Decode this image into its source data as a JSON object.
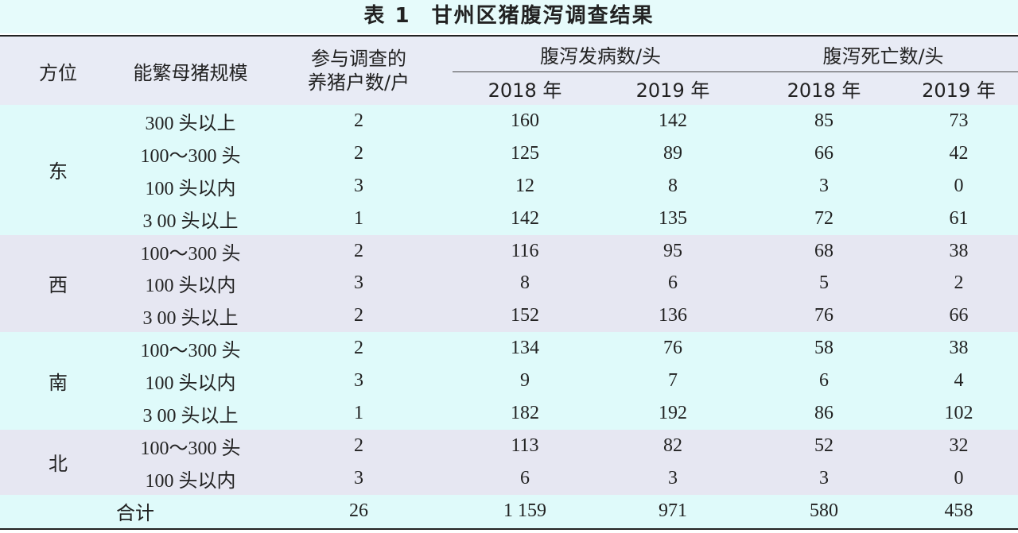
{
  "title": {
    "label": "表 1",
    "text": "甘州区猪腹泻调查结果"
  },
  "header": {
    "region": "方位",
    "scale": "能繁母猪规模",
    "households_line1": "参与调查的",
    "households_line2": "养猪户数/户",
    "incidence": "腹泻发病数/头",
    "deaths": "腹泻死亡数/头",
    "year_2018": "2018 年",
    "year_2019": "2019 年"
  },
  "regions": {
    "east": "东",
    "west": "西",
    "south": "南",
    "north": "北"
  },
  "rows": [
    {
      "scale": "300 头以上",
      "households": "2",
      "inc2018": "160",
      "inc2019": "142",
      "dead2018": "85",
      "dead2019": "73"
    },
    {
      "scale": "100～300 头",
      "households": "2",
      "inc2018": "125",
      "inc2019": "89",
      "dead2018": "66",
      "dead2019": "42"
    },
    {
      "scale": "100 头以内",
      "households": "3",
      "inc2018": "12",
      "inc2019": "8",
      "dead2018": "3",
      "dead2019": "0"
    },
    {
      "scale": "3 00 头以上",
      "households": "1",
      "inc2018": "142",
      "inc2019": "135",
      "dead2018": "72",
      "dead2019": "61"
    },
    {
      "scale": "100～300 头",
      "households": "2",
      "inc2018": "116",
      "inc2019": "95",
      "dead2018": "68",
      "dead2019": "38"
    },
    {
      "scale": "100 头以内",
      "households": "3",
      "inc2018": "8",
      "inc2019": "6",
      "dead2018": "5",
      "dead2019": "2"
    },
    {
      "scale": "3 00 头以上",
      "households": "2",
      "inc2018": "152",
      "inc2019": "136",
      "dead2018": "76",
      "dead2019": "66"
    },
    {
      "scale": "100～300 头",
      "households": "2",
      "inc2018": "134",
      "inc2019": "76",
      "dead2018": "58",
      "dead2019": "38"
    },
    {
      "scale": "100 头以内",
      "households": "3",
      "inc2018": "9",
      "inc2019": "7",
      "dead2018": "6",
      "dead2019": "4"
    },
    {
      "scale": "3 00 头以上",
      "households": "1",
      "inc2018": "182",
      "inc2019": "192",
      "dead2018": "86",
      "dead2019": "102"
    },
    {
      "scale": "100～300 头",
      "households": "2",
      "inc2018": "113",
      "inc2019": "82",
      "dead2018": "52",
      "dead2019": "32"
    },
    {
      "scale": "100 头以内",
      "households": "3",
      "inc2018": "6",
      "inc2019": "3",
      "dead2018": "3",
      "dead2019": "0"
    }
  ],
  "total": {
    "label": "合计",
    "households": "26",
    "inc2018": "1 159",
    "inc2019": "971",
    "dead2018": "580",
    "dead2019": "458"
  },
  "colors": {
    "cyan_band": "#dffafa",
    "lavender_band": "#e6e7f2",
    "header_band": "#e8ebf5",
    "title_band": "#e6fbfb",
    "text": "#222222"
  }
}
